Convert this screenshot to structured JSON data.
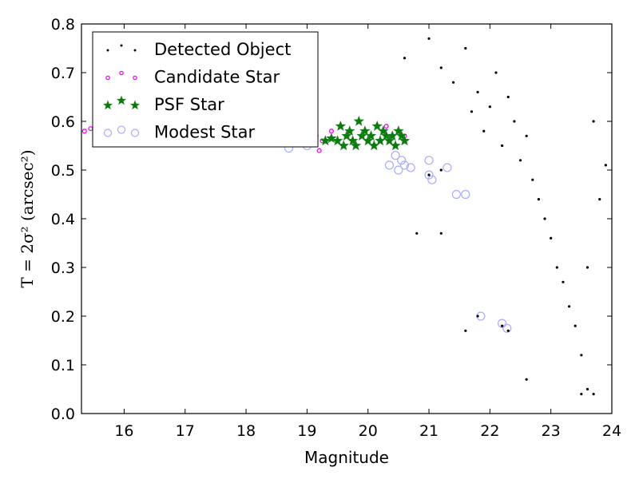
{
  "chart_data": {
    "type": "scatter",
    "xlabel": "Magnitude",
    "ylabel": "T = 2σ² (arcsec²)",
    "xlim": [
      15.3,
      24.0
    ],
    "ylim": [
      0.0,
      0.8
    ],
    "xticks": [
      16,
      17,
      18,
      19,
      20,
      21,
      22,
      23,
      24
    ],
    "yticks": [
      0.0,
      0.1,
      0.2,
      0.3,
      0.4,
      0.5,
      0.6,
      0.7,
      0.8
    ],
    "grid": false,
    "legend_placement": "top-left",
    "series": [
      {
        "name": "Detected Object",
        "marker": "dot",
        "color": "#000000",
        "points": [
          [
            20.6,
            0.73
          ],
          [
            21.0,
            0.77
          ],
          [
            21.2,
            0.71
          ],
          [
            21.4,
            0.68
          ],
          [
            21.6,
            0.75
          ],
          [
            21.7,
            0.62
          ],
          [
            21.8,
            0.66
          ],
          [
            21.9,
            0.58
          ],
          [
            22.0,
            0.63
          ],
          [
            22.1,
            0.7
          ],
          [
            22.2,
            0.55
          ],
          [
            22.3,
            0.65
          ],
          [
            22.4,
            0.6
          ],
          [
            22.5,
            0.52
          ],
          [
            22.6,
            0.57
          ],
          [
            22.7,
            0.48
          ],
          [
            22.8,
            0.44
          ],
          [
            22.9,
            0.4
          ],
          [
            23.0,
            0.36
          ],
          [
            23.1,
            0.3
          ],
          [
            23.2,
            0.27
          ],
          [
            23.3,
            0.22
          ],
          [
            23.4,
            0.18
          ],
          [
            23.5,
            0.12
          ],
          [
            23.6,
            0.05
          ],
          [
            21.8,
            0.2
          ],
          [
            22.2,
            0.18
          ],
          [
            22.3,
            0.17
          ],
          [
            21.0,
            0.49
          ],
          [
            21.2,
            0.5
          ],
          [
            20.8,
            0.37
          ],
          [
            21.2,
            0.37
          ],
          [
            21.6,
            0.17
          ],
          [
            22.6,
            0.07
          ],
          [
            23.5,
            0.04
          ],
          [
            23.7,
            0.04
          ],
          [
            23.9,
            0.51
          ],
          [
            23.7,
            0.6
          ],
          [
            23.8,
            0.44
          ],
          [
            23.6,
            0.3
          ]
        ]
      },
      {
        "name": "Candidate Star",
        "marker": "small-circle",
        "color": "#ff00ff",
        "points": [
          [
            15.35,
            0.58
          ],
          [
            15.45,
            0.585
          ],
          [
            19.15,
            0.57
          ],
          [
            19.2,
            0.54
          ],
          [
            19.25,
            0.56
          ],
          [
            20.3,
            0.59
          ],
          [
            20.6,
            0.57
          ],
          [
            19.4,
            0.58
          ]
        ]
      },
      {
        "name": "PSF Star",
        "marker": "star",
        "color": "#008000",
        "points": [
          [
            19.5,
            0.56
          ],
          [
            19.55,
            0.59
          ],
          [
            19.6,
            0.55
          ],
          [
            19.65,
            0.57
          ],
          [
            19.7,
            0.58
          ],
          [
            19.75,
            0.56
          ],
          [
            19.8,
            0.55
          ],
          [
            19.85,
            0.6
          ],
          [
            19.9,
            0.57
          ],
          [
            19.95,
            0.58
          ],
          [
            20.0,
            0.56
          ],
          [
            20.05,
            0.57
          ],
          [
            20.1,
            0.55
          ],
          [
            20.15,
            0.59
          ],
          [
            20.2,
            0.56
          ],
          [
            20.25,
            0.58
          ],
          [
            20.3,
            0.57
          ],
          [
            20.35,
            0.56
          ],
          [
            20.4,
            0.57
          ],
          [
            20.45,
            0.55
          ],
          [
            20.5,
            0.58
          ],
          [
            20.55,
            0.57
          ],
          [
            20.6,
            0.56
          ],
          [
            19.4,
            0.565
          ],
          [
            19.3,
            0.56
          ]
        ]
      },
      {
        "name": "Modest Star",
        "marker": "open-circle",
        "color": "#aaaaff",
        "points": [
          [
            15.6,
            0.58
          ],
          [
            15.9,
            0.58
          ],
          [
            16.1,
            0.575
          ],
          [
            18.7,
            0.545
          ],
          [
            19.0,
            0.55
          ],
          [
            20.35,
            0.51
          ],
          [
            20.5,
            0.5
          ],
          [
            20.6,
            0.51
          ],
          [
            20.7,
            0.505
          ],
          [
            21.0,
            0.52
          ],
          [
            21.0,
            0.49
          ],
          [
            21.05,
            0.48
          ],
          [
            21.3,
            0.505
          ],
          [
            21.45,
            0.45
          ],
          [
            21.6,
            0.45
          ],
          [
            21.85,
            0.2
          ],
          [
            22.2,
            0.185
          ],
          [
            22.28,
            0.175
          ],
          [
            20.55,
            0.52
          ],
          [
            20.45,
            0.53
          ]
        ]
      }
    ]
  }
}
